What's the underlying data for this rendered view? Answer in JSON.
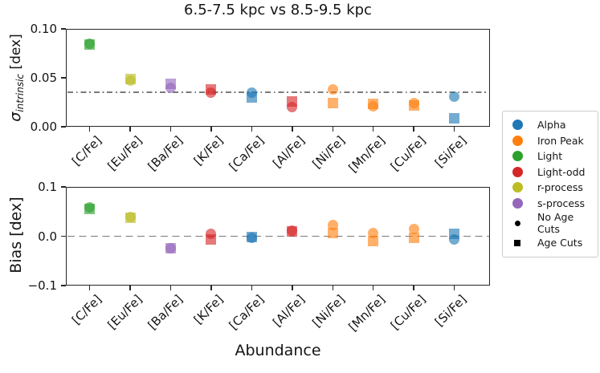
{
  "chart_data": {
    "type": "scatter",
    "title": "6.5-7.5 kpc vs 8.5-9.5 kpc",
    "xlabel": "Abundance",
    "categories": [
      "[C/Fe]",
      "[Eu/Fe]",
      "[Ba/Fe]",
      "[K/Fe]",
      "[Ca/Fe]",
      "[Al/Fe]",
      "[Ni/Fe]",
      "[Mn/Fe]",
      "[Cu/Fe]",
      "[Si/Fe]"
    ],
    "category_groups": [
      "Light",
      "r-process",
      "s-process",
      "Light-odd",
      "Alpha",
      "Light-odd",
      "Iron Peak",
      "Iron Peak",
      "Iron Peak",
      "Alpha"
    ],
    "group_colors": {
      "Alpha": "#1f77b4",
      "Iron Peak": "#ff7f0e",
      "Light": "#2ca02c",
      "Light-odd": "#d62728",
      "r-process": "#bcbd22",
      "s-process": "#9467bd"
    },
    "marker_alpha": 0.62,
    "panels": [
      {
        "name": "sigma-intrinsic",
        "ylabel_symbol": "σ",
        "ylabel_subscript": "intrinsic",
        "ylabel_units": " [dex]",
        "ylim": [
          0.0,
          0.1
        ],
        "yticks": [
          {
            "label": "0.10",
            "value": 0.1
          },
          {
            "label": "0.05",
            "value": 0.05
          },
          {
            "label": "0.00",
            "value": 0.0
          }
        ],
        "ref_line": {
          "value": 0.035,
          "style": "dashdot",
          "color": "#7a7a7a"
        },
        "series": [
          {
            "name": "No Age Cuts",
            "marker": "circle",
            "values": [
              0.085,
              0.047,
              0.04,
              0.035,
              0.035,
              0.02,
              0.038,
              0.021,
              0.024,
              0.031
            ]
          },
          {
            "name": "Age Cuts",
            "marker": "square",
            "values": [
              0.084,
              0.049,
              0.044,
              0.038,
              0.03,
              0.026,
              0.024,
              0.023,
              0.022,
              0.009
            ]
          }
        ]
      },
      {
        "name": "bias",
        "ylabel": "Bias [dex]",
        "ylim": [
          -0.1,
          0.1
        ],
        "yticks": [
          {
            "label": "0.1",
            "value": 0.1
          },
          {
            "label": "0.0",
            "value": 0.0
          },
          {
            "label": "−0.1",
            "value": -0.1
          }
        ],
        "ref_line": {
          "value": 0.0,
          "style": "dashed",
          "color": "#7a7a7a"
        },
        "series": [
          {
            "name": "No Age Cuts",
            "marker": "circle",
            "values": [
              0.058,
              0.039,
              -0.024,
              0.005,
              -0.004,
              0.011,
              0.023,
              0.006,
              0.015,
              -0.006
            ]
          },
          {
            "name": "Age Cuts",
            "marker": "square",
            "values": [
              0.056,
              0.037,
              -0.025,
              -0.006,
              -0.001,
              0.009,
              0.007,
              -0.009,
              -0.003,
              0.005
            ]
          }
        ]
      }
    ],
    "legend": {
      "color_items": [
        {
          "label": "Alpha",
          "color": "#1f77b4"
        },
        {
          "label": "Iron Peak",
          "color": "#ff7f0e"
        },
        {
          "label": "Light",
          "color": "#2ca02c"
        },
        {
          "label": "Light-odd",
          "color": "#d62728"
        },
        {
          "label": "r-process",
          "color": "#bcbd22"
        },
        {
          "label": "s-process",
          "color": "#9467bd"
        }
      ],
      "marker_items": [
        {
          "label": "No Age Cuts",
          "marker": "circle"
        },
        {
          "label": "Age Cuts",
          "marker": "square"
        }
      ]
    }
  }
}
